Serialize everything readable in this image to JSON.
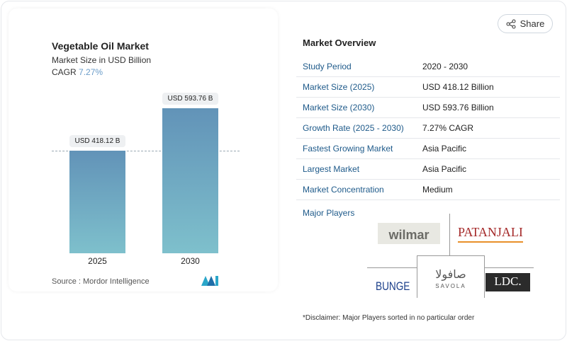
{
  "share_label": "Share",
  "chart": {
    "title": "Vegetable Oil Market",
    "subtitle": "Market Size in USD Billion",
    "cagr_label": "CAGR",
    "cagr_value": "7.27%",
    "source": "Source :  Mordor Intelligence"
  },
  "chart_data": {
    "type": "bar",
    "title": "Vegetable Oil Market",
    "ylabel": "Market Size in USD Billion",
    "categories": [
      "2025",
      "2030"
    ],
    "values": [
      418.12,
      593.76
    ],
    "labels": [
      "USD 418.12 B",
      "USD 593.76 B"
    ]
  },
  "overview": {
    "title": "Market Overview",
    "rows": [
      {
        "label": "Study Period",
        "value": "2020 - 2030"
      },
      {
        "label": "Market Size (2025)",
        "value": "USD 418.12 Billion"
      },
      {
        "label": "Market Size (2030)",
        "value": "USD 593.76 Billion"
      },
      {
        "label": "Growth Rate (2025 - 2030)",
        "value": "7.27% CAGR"
      },
      {
        "label": "Fastest Growing Market",
        "value": "Asia Pacific"
      },
      {
        "label": "Largest Market",
        "value": "Asia Pacific"
      },
      {
        "label": "Market Concentration",
        "value": "Medium"
      }
    ],
    "major_players_label": "Major Players",
    "players": [
      "wilmar",
      "PATANJALI",
      "BUNGE",
      "SAVOLA",
      "LDC."
    ],
    "disclaimer": "*Disclaimer: Major Players sorted in no particular order"
  }
}
